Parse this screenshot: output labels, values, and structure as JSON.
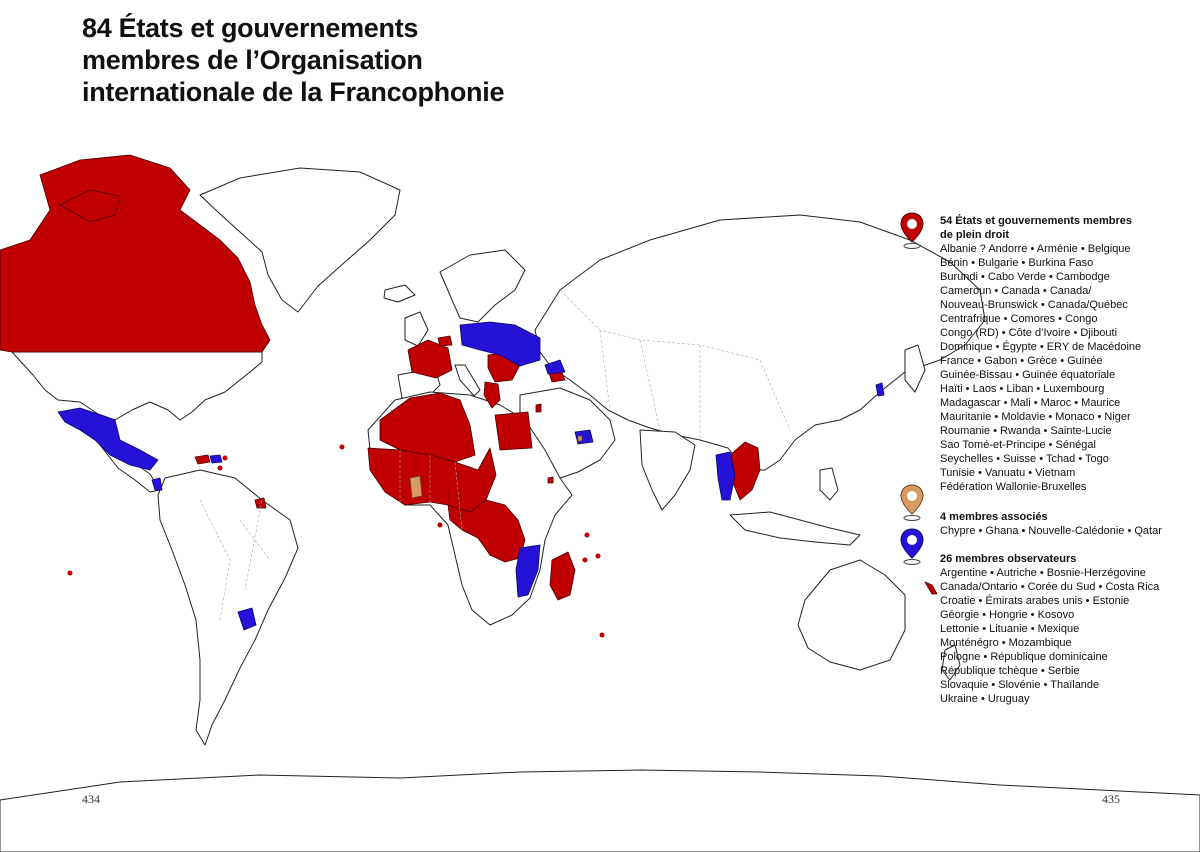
{
  "title": {
    "lines": [
      "84 États et gouvernements",
      "membres de l’Organisation",
      "internationale de la Francophonie"
    ]
  },
  "legend": {
    "full": {
      "heading": [
        "54 États et gouvernements membres",
        "de plein droit"
      ],
      "lines": [
        "Albanie ? Andorre • Arménie • Belgique",
        "Bénin • Bulgarie • Burkina Faso",
        "Burundi • Cabo Verde • Cambodge",
        "Cameroun • Canada • Canada/",
        "Nouveau-Brunswick • Canada/Québec",
        "Centrafrique • Comores • Congo",
        "Congo (RD) • Côte d’Ivoire • Djibouti",
        "Dominique • Égypte • ERY de Macédoine",
        "France • Gabon • Grèce • Guinée",
        "Guinée-Bissau • Guinée équatoriale",
        "Haïti • Laos • Liban • Luxembourg",
        "Madagascar • Mali • Maroc • Maurice",
        "Mauritanie • Moldavie • Monaco • Niger",
        "Roumanie • Rwanda • Sainte-Lucie",
        "Sao Tomé-et-Principe • Sénégal",
        "Seychelles • Suisse • Tchad • Togo",
        "Tunisie • Vanuatu • Vietnam",
        "Fédération Wallonie-Bruxelles"
      ],
      "color": "#c00000"
    },
    "associate": {
      "heading": [
        "4 membres associés"
      ],
      "lines": [
        "Chypre • Ghana • Nouvelle-Calédonie • Qatar"
      ],
      "color": "#d69a62"
    },
    "observer": {
      "heading": [
        "26 membres observateurs"
      ],
      "lines": [
        "Argentine • Autriche • Bosnie-Herzégovine",
        "Canada/Ontario • Corée du Sud • Costa Rica",
        "Croatie • Émirats arabes unis • Estonie",
        "Géorgie • Hongrie • Kosovo",
        "Lettonie • Lituanie • Mexique",
        "Monténégro • Mozambique",
        "Pologne • République dominicaine",
        "République tchèque • Serbie",
        "Slovaquie • Slovénie • Thaïlande",
        "Ukraine • Uruguay"
      ],
      "color": "#2612d6"
    }
  },
  "pages": {
    "left": "434",
    "right": "435"
  },
  "map_colors": {
    "full_member": "#c00000",
    "associate_member": "#d69a62",
    "observer_member": "#2612d6",
    "non_member": "#ffffff"
  },
  "icons": [
    "map-pin-red-icon",
    "map-pin-tan-icon",
    "map-pin-blue-icon"
  ]
}
